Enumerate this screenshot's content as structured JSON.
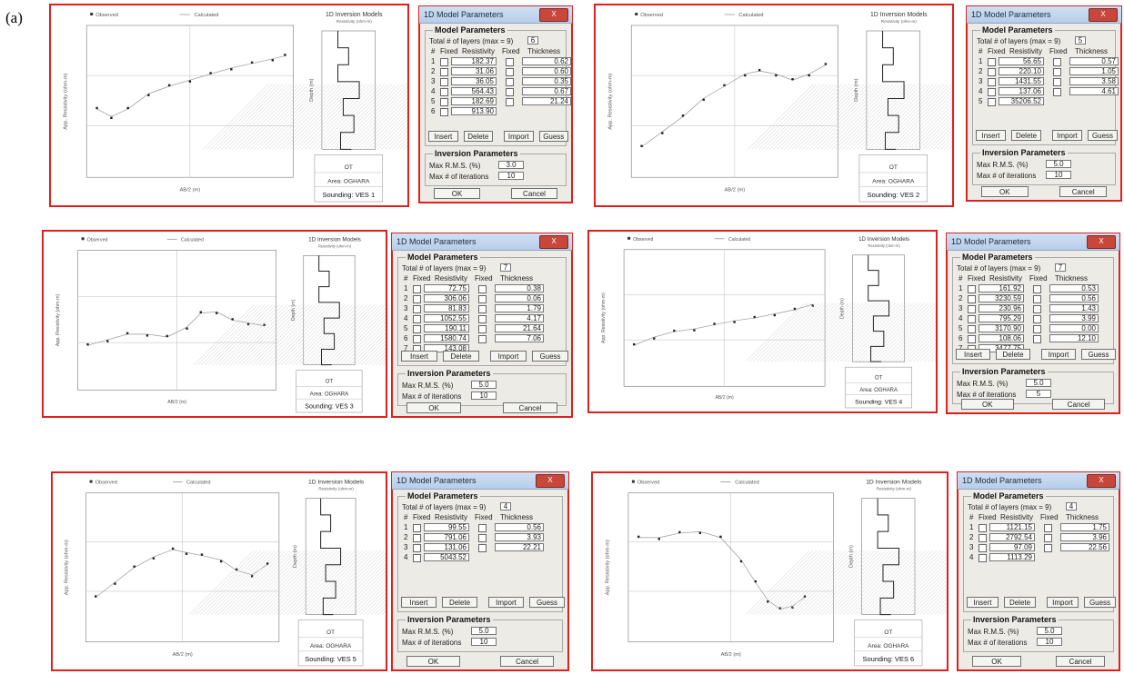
{
  "figure_label": "(a)",
  "panels": [
    {
      "id": "ves1",
      "legend": {
        "observed": "Observed",
        "calculated": "Calculated"
      },
      "inv_title": "1D Inversion Models",
      "inv_sub": "Resistivity (ohm-m)",
      "xlabel": "AB/2 (m)",
      "ylabel": "App. Resistivity (ohm-m)",
      "depth_label": "Depth (m)",
      "info": {
        "line1": "OT",
        "area": "Area: OGHARA",
        "sounding": "Sounding: VES 1"
      }
    },
    {
      "id": "ves2",
      "legend": {
        "observed": "Observed",
        "calculated": "Calculated"
      },
      "inv_title": "1D Inversion Models",
      "inv_sub": "Resistivity (ohm-m)",
      "xlabel": "AB/2 (m)",
      "ylabel": "App. Resistivity (ohm-m)",
      "depth_label": "Depth (m)",
      "info": {
        "line1": "OT",
        "area": "Area: OGHARA",
        "sounding": "Sounding: VES 2"
      }
    },
    {
      "id": "ves3",
      "legend": {
        "observed": "Observed",
        "calculated": "Calculated"
      },
      "inv_title": "1D Inversion Models",
      "inv_sub": "Resistivity (ohm-m)",
      "xlabel": "AB/2 (m)",
      "ylabel": "App. Resistivity (ohm-m)",
      "depth_label": "Depth (m)",
      "info": {
        "line1": "OT",
        "area": "Area: OGHARA",
        "sounding": "Sounding: VES 3"
      }
    },
    {
      "id": "ves4",
      "legend": {
        "observed": "Observed",
        "calculated": "Calculated"
      },
      "inv_title": "1D Inversion Models",
      "inv_sub": "Resistivity (ohm-m)",
      "xlabel": "AB/2 (m)",
      "ylabel": "App. Resistivity (ohm-m)",
      "depth_label": "Depth (m)",
      "info": {
        "line1": "OT",
        "area": "Area: OGHARA",
        "sounding": "Sounding: VES 4"
      }
    },
    {
      "id": "ves5",
      "legend": {
        "observed": "Observed",
        "calculated": "Calculated"
      },
      "inv_title": "1D Inversion Models",
      "inv_sub": "Resistivity (ohm-m)",
      "xlabel": "AB/2 (m)",
      "ylabel": "App. Resistivity (ohm-m)",
      "depth_label": "Depth (m)",
      "info": {
        "line1": "OT",
        "area": "Area: OGHARA",
        "sounding": "Sounding: VES 5"
      }
    },
    {
      "id": "ves6",
      "legend": {
        "observed": "Observed",
        "calculated": "Calculated"
      },
      "inv_title": "1D Inversion Models",
      "inv_sub": "Resistivity (ohm-m)",
      "xlabel": "AB/2 (m)",
      "ylabel": "App. Resistivity (ohm-m)",
      "depth_label": "Depth (m)",
      "info": {
        "line1": "OT",
        "area": "Area: OGHARA",
        "sounding": "Sounding: VES 6"
      }
    }
  ],
  "dialog_common": {
    "title": "1D Model Parameters",
    "close": "X",
    "model_params": "Model Parameters",
    "total_layers": "Total # of layers (max = 9)",
    "col_num": "#",
    "col_fixed": "Fixed",
    "col_res": "Resistivity",
    "col_fixed2": "Fixed",
    "col_thk": "Thickness",
    "btn_insert": "Insert",
    "btn_delete": "Delete",
    "btn_import": "Import",
    "btn_guess": "Guess",
    "inv_params": "Inversion Parameters",
    "max_rms": "Max R.M.S. (%)",
    "max_iter": "Max # of iterations",
    "ok": "OK",
    "cancel": "Cancel"
  },
  "dialogs": [
    {
      "layers": "6",
      "rms": "3.0",
      "iter": "10",
      "rows": [
        [
          "1",
          "182.37",
          "0.62"
        ],
        [
          "2",
          "31.06",
          "0.60"
        ],
        [
          "3",
          "36.05",
          "0.35"
        ],
        [
          "4",
          "564.43",
          "0.67"
        ],
        [
          "5",
          "182.69",
          "21.24"
        ],
        [
          "6",
          "913.90",
          ""
        ]
      ]
    },
    {
      "layers": "5",
      "rms": "5.0",
      "iter": "10",
      "rows": [
        [
          "1",
          "56.65",
          "0.57"
        ],
        [
          "2",
          "220.10",
          "1.05"
        ],
        [
          "3",
          "1431.55",
          "3.58"
        ],
        [
          "4",
          "137.06",
          "4.61"
        ],
        [
          "5",
          "35206.52",
          ""
        ]
      ]
    },
    {
      "layers": "7",
      "rms": "5.0",
      "iter": "10",
      "rows": [
        [
          "1",
          "72.75",
          "0.38"
        ],
        [
          "2",
          "306.06",
          "0.06"
        ],
        [
          "3",
          "81.83",
          "1.79"
        ],
        [
          "4",
          "1052.55",
          "4.17"
        ],
        [
          "5",
          "190.11",
          "21.64"
        ],
        [
          "6",
          "1580.74",
          "7.06"
        ],
        [
          "7",
          "143.08",
          ""
        ]
      ]
    },
    {
      "layers": "7",
      "rms": "5.0",
      "iter": "5",
      "rows": [
        [
          "1",
          "161.92",
          "0.53"
        ],
        [
          "2",
          "3230.59",
          "0.56"
        ],
        [
          "3",
          "230.96",
          "1.43"
        ],
        [
          "4",
          "795.29",
          "3.99"
        ],
        [
          "5",
          "3170.90",
          "0.00"
        ],
        [
          "6",
          "108.06",
          "12.10"
        ],
        [
          "7",
          "3477.75",
          ""
        ]
      ]
    },
    {
      "layers": "4",
      "rms": "5.0",
      "iter": "10",
      "rows": [
        [
          "1",
          "99.55",
          "0.56"
        ],
        [
          "2",
          "791.06",
          "3.93"
        ],
        [
          "3",
          "131.06",
          "22.21"
        ],
        [
          "4",
          "5043.52",
          ""
        ]
      ]
    },
    {
      "layers": "4",
      "rms": "5.0",
      "iter": "10",
      "rows": [
        [
          "1",
          "1121.15",
          "1.75"
        ],
        [
          "2",
          "2792.54",
          "3.96"
        ],
        [
          "3",
          "97.09",
          "22.56"
        ],
        [
          "4",
          "1113.29",
          ""
        ]
      ]
    }
  ]
}
